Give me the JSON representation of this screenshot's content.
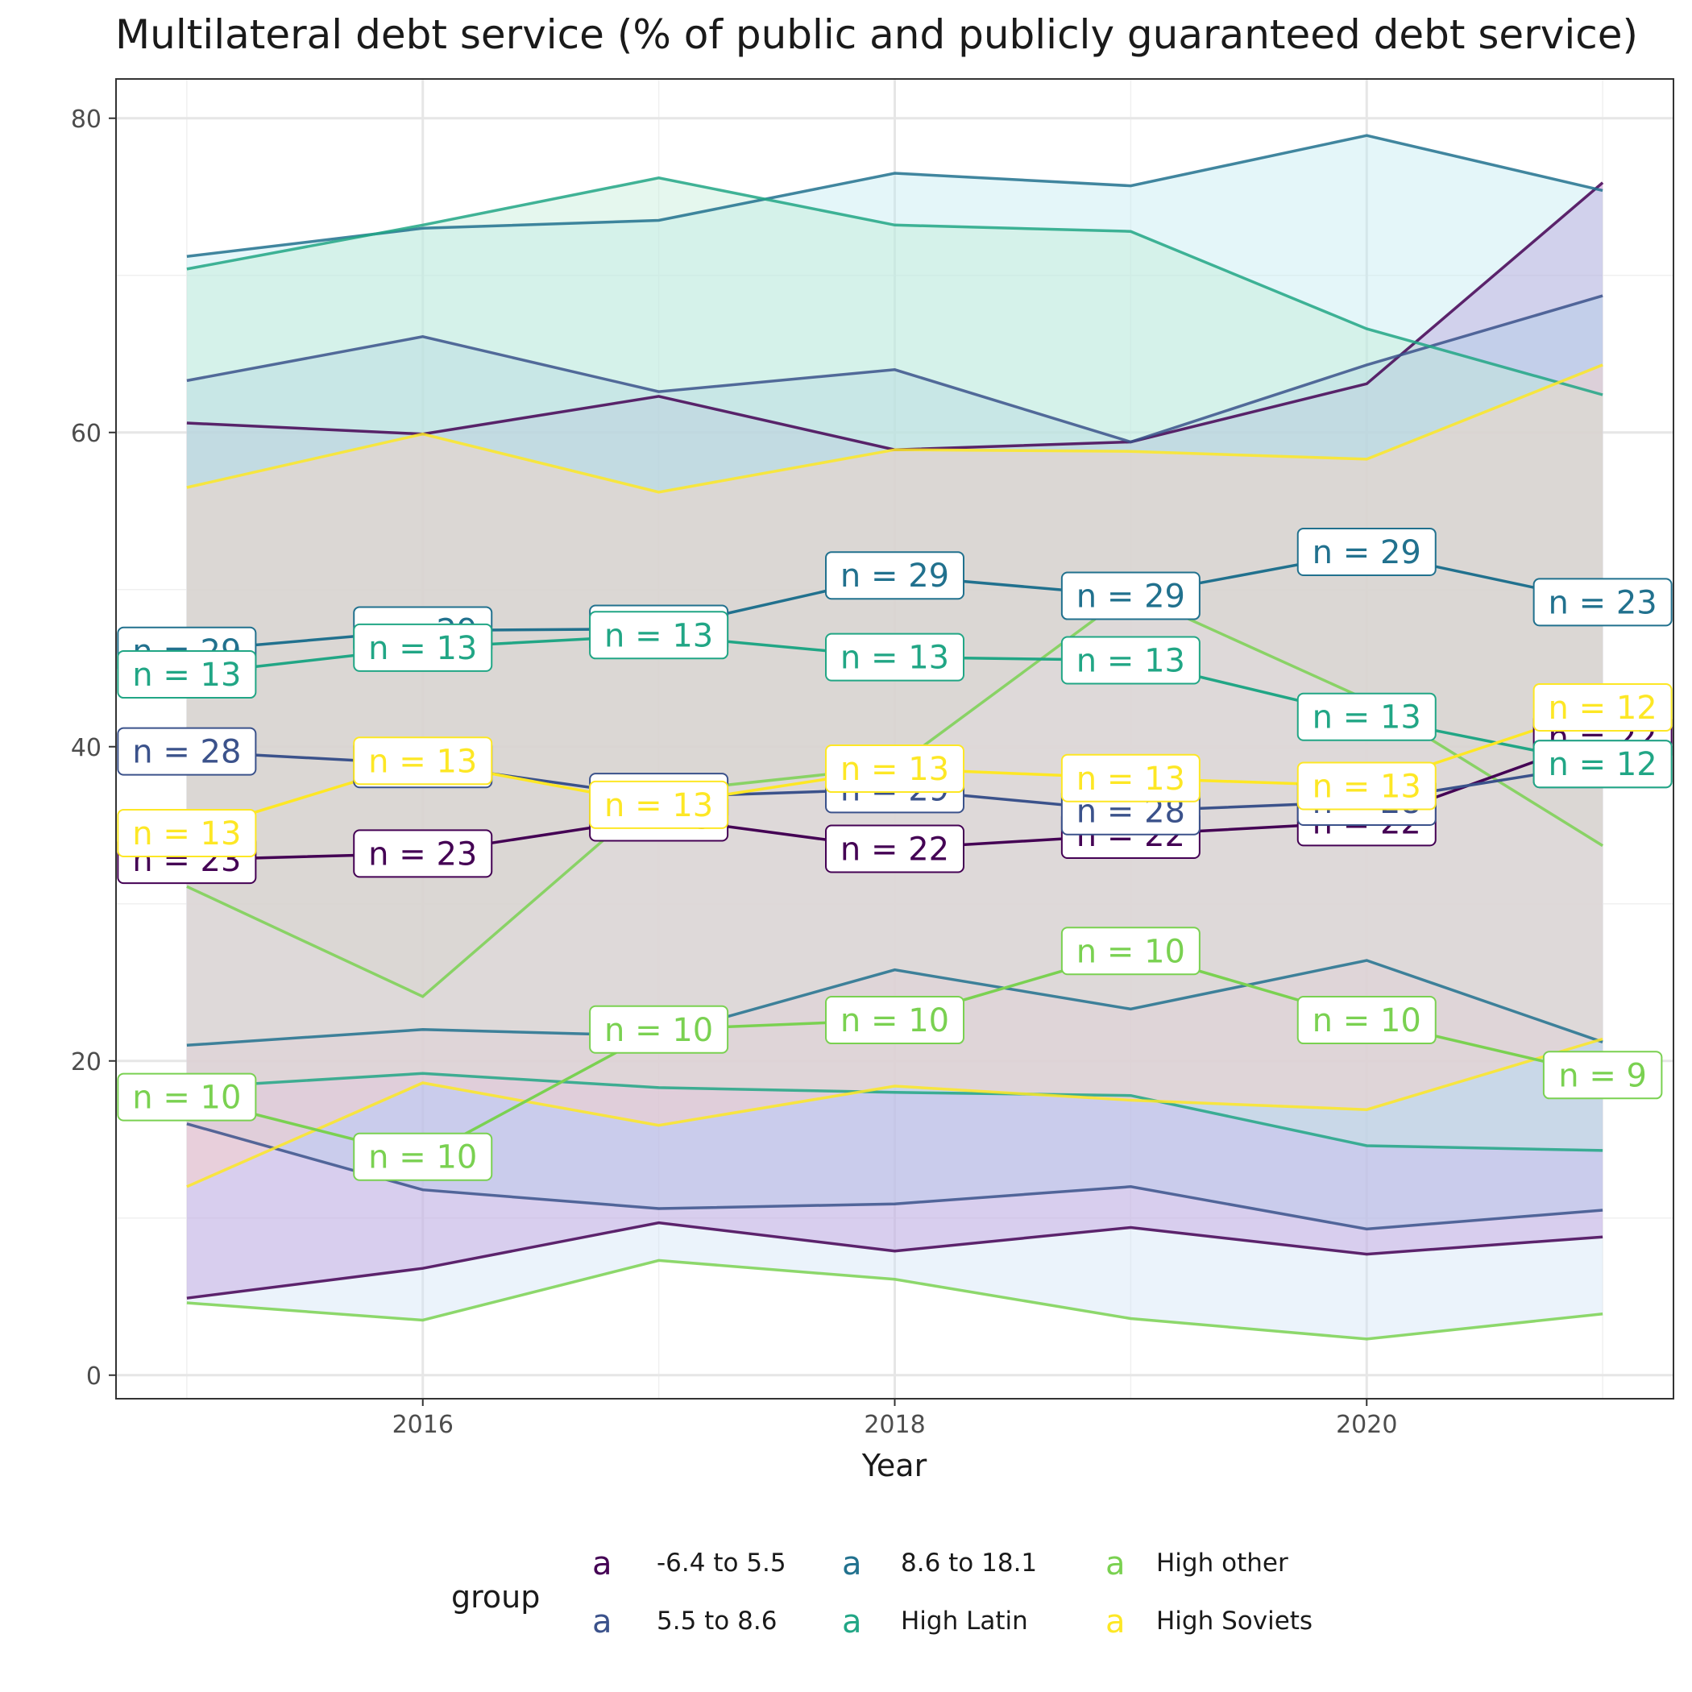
{
  "chart_data": {
    "type": "area",
    "title": "Multilateral debt service (% of public and publicly guaranteed debt service)",
    "xlabel": "Year",
    "ylabel": "",
    "xlim": [
      2014.7,
      2021.3
    ],
    "ylim": [
      -1.5,
      82.5
    ],
    "x_ticks": [
      2016,
      2018,
      2020
    ],
    "y_ticks": [
      0,
      20,
      40,
      60,
      80
    ],
    "grid": true,
    "legend_title": "group",
    "legend_placement": "bottom",
    "x": [
      2015,
      2016,
      2017,
      2018,
      2019,
      2020,
      2021
    ],
    "series": [
      {
        "name": "-6.4 to 5.5",
        "color": "#440154",
        "fill": "#b266c8",
        "median": [
          32.8,
          33.2,
          35.5,
          33.5,
          34.4,
          35.2,
          40.6
        ],
        "upper": [
          60.6,
          59.9,
          62.3,
          58.9,
          59.4,
          63.1,
          75.9
        ],
        "lower": [
          4.9,
          6.8,
          9.7,
          7.9,
          9.4,
          7.7,
          8.8
        ],
        "n": [
          23,
          23,
          23,
          22,
          22,
          22,
          22
        ],
        "n_labels": [
          "n = 23",
          "n = 23",
          "n = 23",
          "n = 22",
          "n = 22",
          "n = 22",
          "n = 22"
        ]
      },
      {
        "name": "5.5 to 8.6",
        "color": "#3b528b",
        "fill": "#a7b8df",
        "median": [
          39.7,
          38.9,
          36.8,
          37.3,
          35.9,
          36.5,
          38.9
        ],
        "upper": [
          63.3,
          66.1,
          62.6,
          64.0,
          59.4,
          64.3,
          68.7
        ],
        "lower": [
          16.0,
          11.8,
          10.6,
          10.9,
          12.0,
          9.3,
          10.5
        ],
        "n": [
          28,
          28,
          29,
          29,
          28,
          28,
          29
        ],
        "n_labels": [
          "n = 28",
          "n = 28",
          "n = 29",
          "n = 29",
          "n = 28",
          "n = 28",
          "n = 29"
        ]
      },
      {
        "name": "8.6 to 18.1",
        "color": "#21718e",
        "fill": "#bfeaf0",
        "median": [
          46.1,
          47.4,
          47.5,
          50.9,
          49.6,
          52.4,
          49.2
        ],
        "upper": [
          71.2,
          73.0,
          73.5,
          76.5,
          75.7,
          78.9,
          75.4
        ],
        "lower": [
          21.0,
          22.0,
          21.6,
          25.8,
          23.3,
          26.4,
          21.2
        ],
        "n": [
          29,
          29,
          29,
          29,
          29,
          29,
          23
        ],
        "n_labels": [
          "n = 29",
          "n = 29",
          "n = 29",
          "n = 29",
          "n = 29",
          "n = 29",
          "n = 23"
        ]
      },
      {
        "name": "High Latin",
        "color": "#21a685",
        "fill": "#c2ecd6",
        "median": [
          44.6,
          46.3,
          47.1,
          45.7,
          45.5,
          41.9,
          38.9
        ],
        "upper": [
          70.4,
          73.2,
          76.2,
          73.2,
          72.8,
          66.6,
          62.4
        ],
        "lower": [
          18.3,
          19.2,
          18.3,
          18.0,
          17.8,
          14.6,
          14.3
        ],
        "n": [
          13,
          13,
          13,
          13,
          13,
          13,
          12
        ],
        "n_labels": [
          "n = 13",
          "n = 13",
          "n = 13",
          "n = 13",
          "n = 13",
          "n = 13",
          "n = 12"
        ]
      },
      {
        "name": "High other",
        "color": "#7ad151",
        "fill": "#cfe3f6",
        "median": [
          17.7,
          13.9,
          22.0,
          22.6,
          27.0,
          22.6,
          19.1
        ],
        "upper": [
          31.1,
          24.1,
          37.1,
          38.7,
          49.8,
          43.0,
          33.7
        ],
        "lower": [
          4.6,
          3.5,
          7.3,
          6.1,
          3.6,
          2.3,
          3.9
        ],
        "n": [
          10,
          10,
          10,
          10,
          10,
          10,
          9
        ],
        "n_labels": [
          "n = 10",
          "n = 10",
          "n = 10",
          "n = 10",
          "n = 10",
          "n = 10",
          "n = 9"
        ]
      },
      {
        "name": "High Soviets",
        "color": "#fde725",
        "fill": "#ffd2c2",
        "median": [
          34.5,
          39.1,
          36.3,
          38.6,
          38.0,
          37.5,
          42.5
        ],
        "upper": [
          56.5,
          59.9,
          56.2,
          58.9,
          58.8,
          58.3,
          64.3
        ],
        "lower": [
          12.0,
          18.6,
          15.9,
          18.4,
          17.5,
          16.9,
          21.4
        ],
        "n": [
          13,
          13,
          13,
          13,
          13,
          13,
          12
        ],
        "n_labels": [
          "n = 13",
          "n = 13",
          "n = 13",
          "n = 13",
          "n = 13",
          "n = 13",
          "n = 12"
        ]
      }
    ]
  }
}
